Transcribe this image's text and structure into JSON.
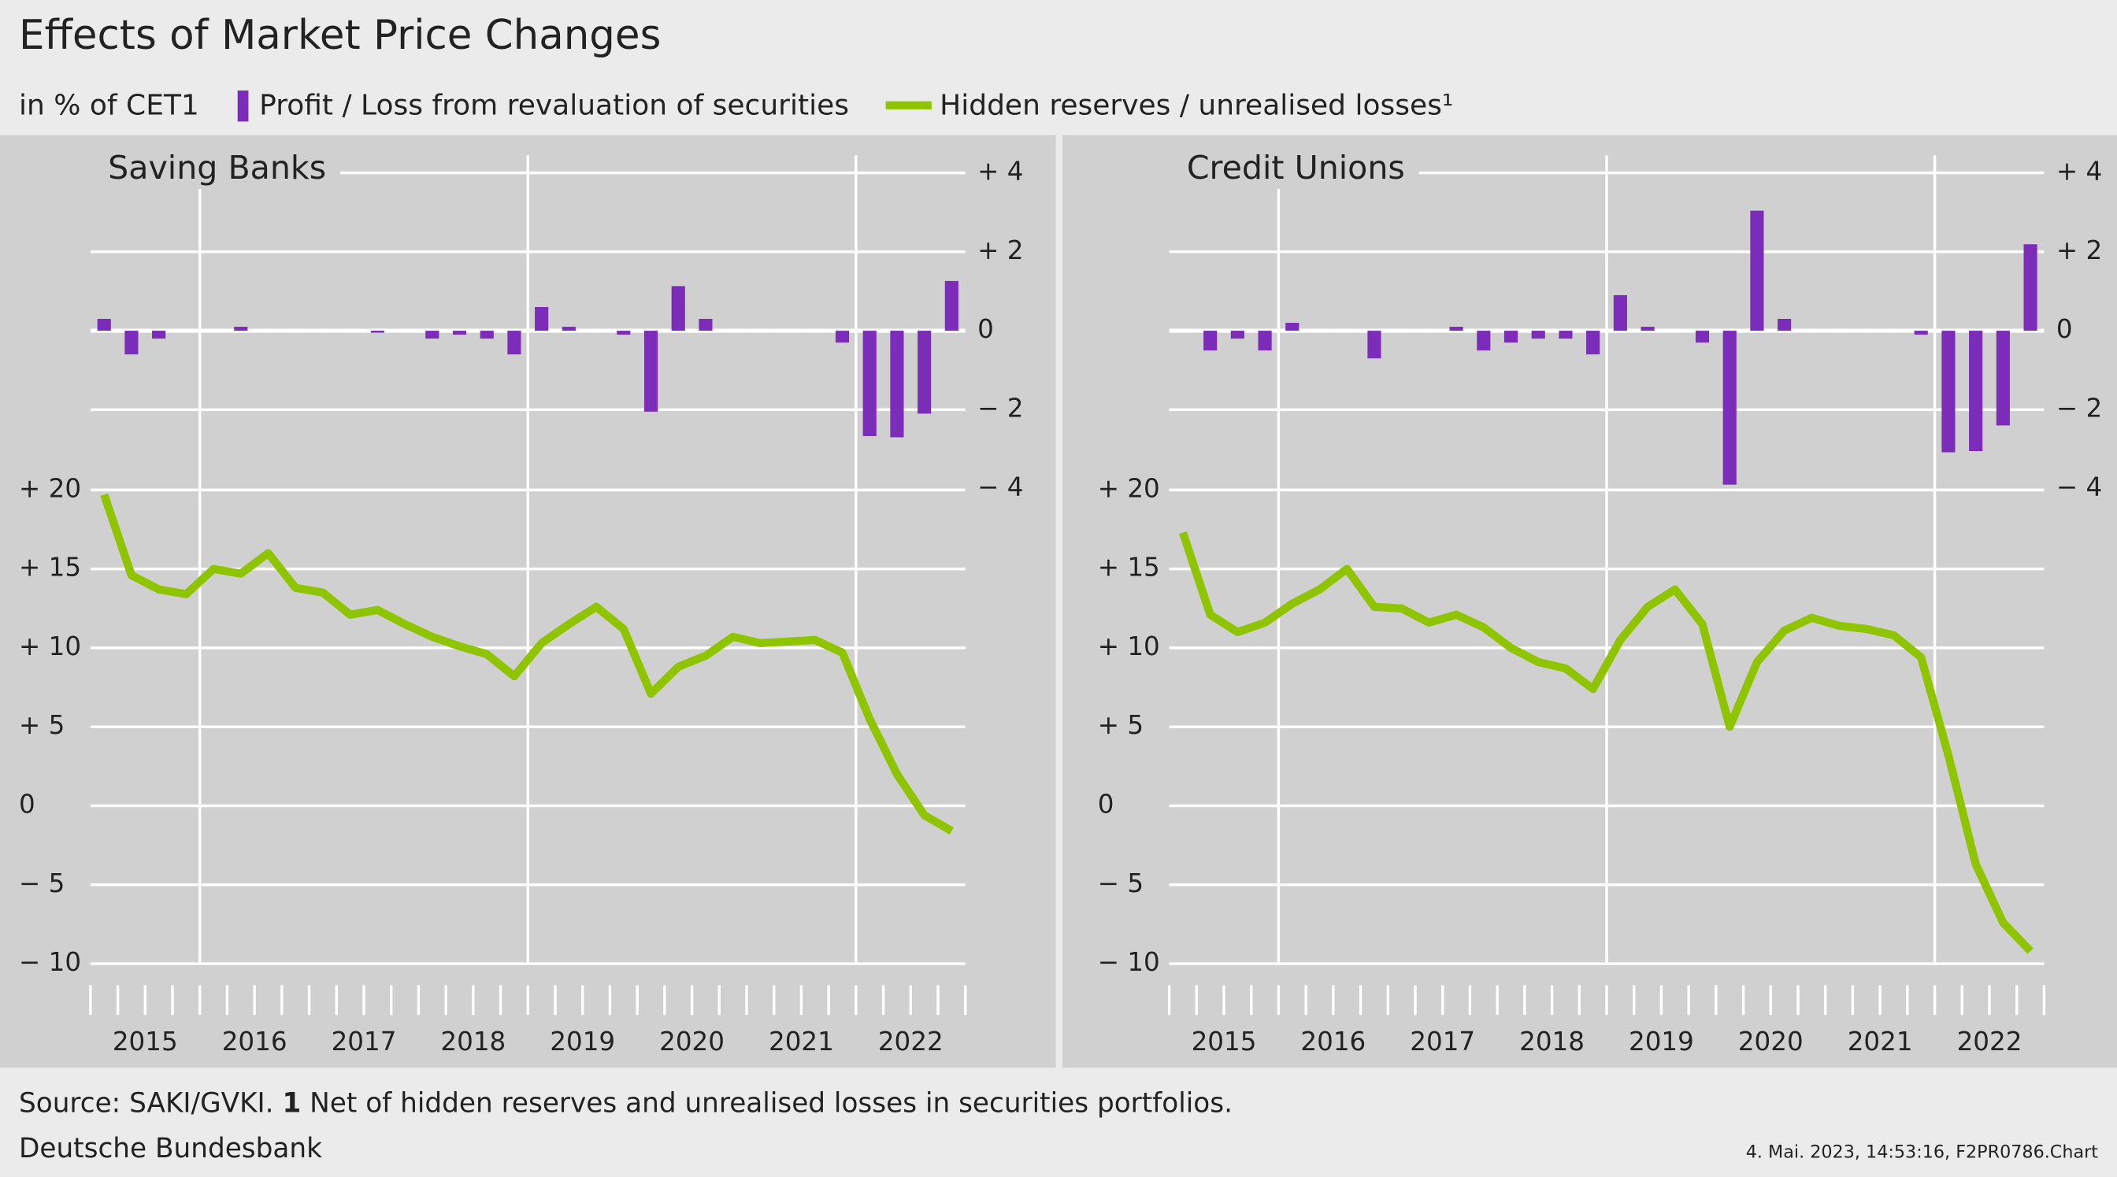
{
  "title": "Effects of Market Price Changes",
  "subtitle": "in % of CET1",
  "source": "Source: SAKI/GVKI. ",
  "note_number": "1",
  "note": " Net of hidden reserves and unrealised losses in securities portfolios.",
  "publisher": "Deutsche Bundesbank",
  "stamp": "4. Mai. 2023, 14:53:16, F2PR0786.Chart",
  "chart_data": [
    {
      "type": "combo",
      "title": "Saving Banks",
      "categories": [
        "2015",
        null,
        null,
        null,
        "2016",
        null,
        null,
        null,
        "2017",
        null,
        null,
        null,
        "2018",
        null,
        null,
        null,
        "2019",
        null,
        null,
        null,
        "2020",
        null,
        null,
        null,
        "2021",
        null,
        null,
        null,
        "2022",
        null,
        null,
        null
      ],
      "ylim": [
        -10,
        20
      ],
      "yticks": [
        {
          "value": 20,
          "label": "+ 20"
        },
        {
          "value": 15,
          "label": "+ 15"
        },
        {
          "value": 10,
          "label": "+ 10"
        },
        {
          "value": 5,
          "label": "+  5"
        },
        0,
        {
          "value": -5,
          "label": "−  5"
        },
        {
          "value": -10,
          "label": "− 10"
        }
      ],
      "y2lim": [
        -4,
        4
      ],
      "y2ticks": [
        {
          "value": 4,
          "label": "+ 4"
        },
        {
          "value": 2,
          "label": "+ 2"
        },
        0,
        {
          "value": -2,
          "label": "− 2"
        },
        {
          "value": -4,
          "label": "− 4"
        }
      ],
      "grid": true,
      "series": [
        {
          "name": "Profit / Loss from revaluation of securities",
          "type": "bar",
          "axis": "y2",
          "color": "#7b2cb8",
          "values": [
            0.3,
            -0.6,
            -0.2,
            0,
            0,
            0.1,
            0,
            0,
            0,
            0,
            -0.05,
            0,
            -0.2,
            -0.1,
            -0.2,
            -0.6,
            0.6,
            0.1,
            0,
            -0.1,
            -2.05,
            1.13,
            0.3,
            0,
            0,
            0,
            0,
            -0.3,
            -2.67,
            -2.7,
            -2.1,
            1.26
          ]
        },
        {
          "name": "Hidden reserves / unrealised losses¹",
          "type": "line",
          "color": "#8ec400",
          "values": [
            19.7,
            14.6,
            13.7,
            13.4,
            15.0,
            14.7,
            16.0,
            13.8,
            13.5,
            12.1,
            12.4,
            11.5,
            10.7,
            10.1,
            9.6,
            8.2,
            10.3,
            11.5,
            12.6,
            11.2,
            7.1,
            8.8,
            9.5,
            10.7,
            10.3,
            10.4,
            10.5,
            9.7,
            5.5,
            2.0,
            -0.6,
            -1.6
          ]
        }
      ]
    },
    {
      "type": "combo",
      "title": "Credit Unions",
      "categories": [
        "2015",
        null,
        null,
        null,
        "2016",
        null,
        null,
        null,
        "2017",
        null,
        null,
        null,
        "2018",
        null,
        null,
        null,
        "2019",
        null,
        null,
        null,
        "2020",
        null,
        null,
        null,
        "2021",
        null,
        null,
        null,
        "2022",
        null,
        null,
        null
      ],
      "ylim": [
        -10,
        20
      ],
      "yticks": [
        {
          "value": 20,
          "label": "+ 20"
        },
        {
          "value": 15,
          "label": "+ 15"
        },
        {
          "value": 10,
          "label": "+ 10"
        },
        {
          "value": 5,
          "label": "+  5"
        },
        0,
        {
          "value": -5,
          "label": "−  5"
        },
        {
          "value": -10,
          "label": "− 10"
        }
      ],
      "y2lim": [
        -4,
        4
      ],
      "y2ticks": [
        {
          "value": 4,
          "label": "+ 4"
        },
        {
          "value": 2,
          "label": "+ 2"
        },
        0,
        {
          "value": -2,
          "label": "− 2"
        },
        {
          "value": -4,
          "label": "− 4"
        }
      ],
      "grid": true,
      "series": [
        {
          "type": "bar",
          "axis": "y2",
          "color": "#7b2cb8",
          "values": [
            0,
            -0.5,
            -0.2,
            -0.5,
            0.2,
            0,
            0,
            -0.7,
            0,
            0,
            0.1,
            -0.5,
            -0.3,
            -0.2,
            -0.2,
            -0.6,
            0.9,
            0.1,
            0,
            -0.3,
            -3.9,
            3.04,
            0.3,
            0,
            0,
            0,
            0,
            -0.1,
            -3.08,
            -3.05,
            -2.4,
            2.19
          ]
        },
        {
          "type": "line",
          "color": "#8ec400",
          "values": [
            17.3,
            12.1,
            11.0,
            11.6,
            12.8,
            13.7,
            15.0,
            12.6,
            12.5,
            11.6,
            12.1,
            11.3,
            10.0,
            9.1,
            8.7,
            7.4,
            10.5,
            12.6,
            13.7,
            11.5,
            5.0,
            9.1,
            11.1,
            11.9,
            11.4,
            11.2,
            10.8,
            9.4,
            3.2,
            -3.7,
            -7.4,
            -9.2
          ]
        }
      ]
    }
  ]
}
